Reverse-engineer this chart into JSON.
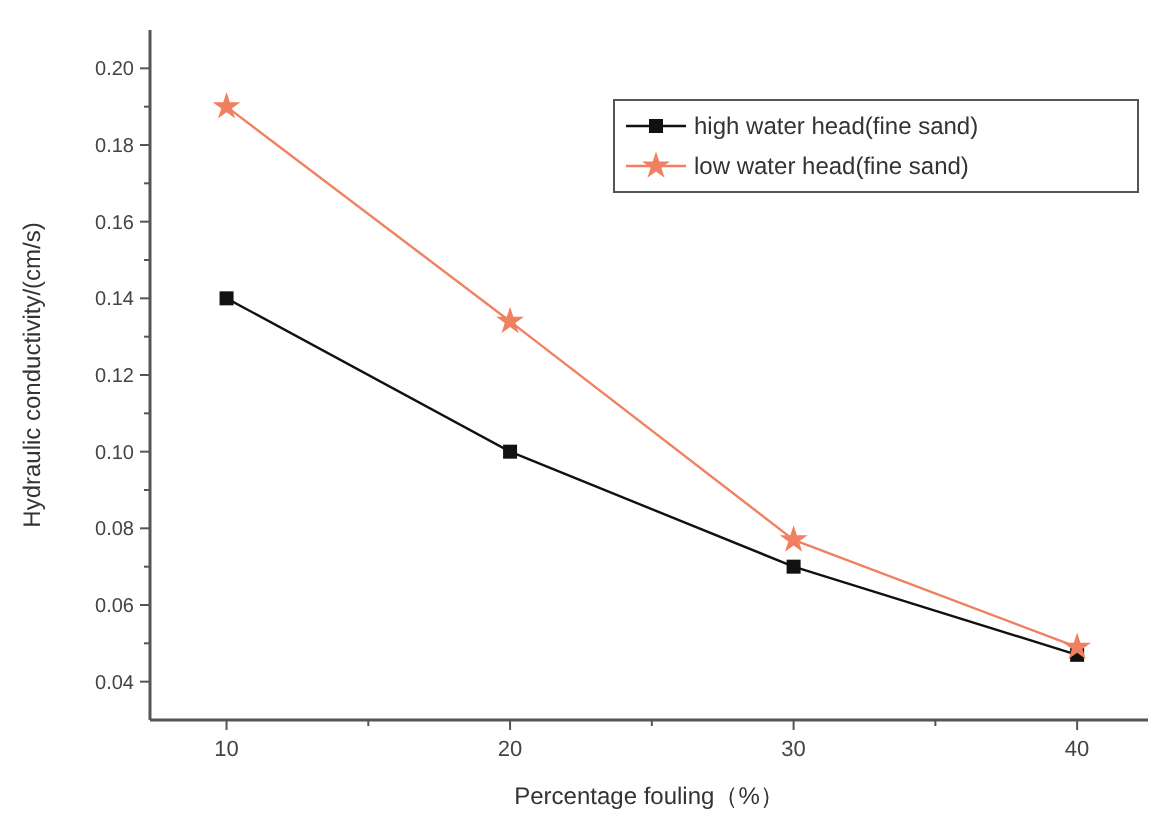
{
  "chart_data": {
    "type": "line",
    "xlabel": "Percentage fouling（%）",
    "ylabel": "Hydraulic conductivity/(cm/s)",
    "x": [
      10,
      20,
      30,
      40
    ],
    "series": [
      {
        "name": "high water head(fine sand)",
        "color": "#111111",
        "values": [
          0.14,
          0.1,
          0.07,
          0.047
        ],
        "marker": "square"
      },
      {
        "name": "low water head(fine sand)",
        "color": "#f08060",
        "values": [
          0.19,
          0.134,
          0.077,
          0.049
        ],
        "marker": "star"
      }
    ],
    "xlim": [
      7.3,
      42.5
    ],
    "xticks": [
      10,
      {
        "value": 15,
        "label": null
      },
      20,
      {
        "value": 25,
        "label": null
      },
      30,
      {
        "value": 35,
        "label": null
      },
      40
    ],
    "ylim": [
      0.03,
      0.21
    ],
    "yticks": [
      {
        "value": 0.04,
        "label": "0.04"
      },
      {
        "value": 0.05,
        "label": null
      },
      {
        "value": 0.06,
        "label": "0.06"
      },
      {
        "value": 0.07,
        "label": null
      },
      {
        "value": 0.08,
        "label": "0.08"
      },
      {
        "value": 0.09,
        "label": null
      },
      {
        "value": 0.1,
        "label": "0.10"
      },
      {
        "value": 0.11,
        "label": null
      },
      {
        "value": 0.12,
        "label": "0.12"
      },
      {
        "value": 0.13,
        "label": null
      },
      {
        "value": 0.14,
        "label": "0.14"
      },
      {
        "value": 0.15,
        "label": null
      },
      {
        "value": 0.16,
        "label": "0.16"
      },
      {
        "value": 0.17,
        "label": null
      },
      {
        "value": 0.18,
        "label": "0.18"
      },
      {
        "value": 0.19,
        "label": null
      },
      {
        "value": 0.2,
        "label": "0.20"
      }
    ],
    "legend": "top right",
    "grid": false,
    "line_style": "solid"
  }
}
